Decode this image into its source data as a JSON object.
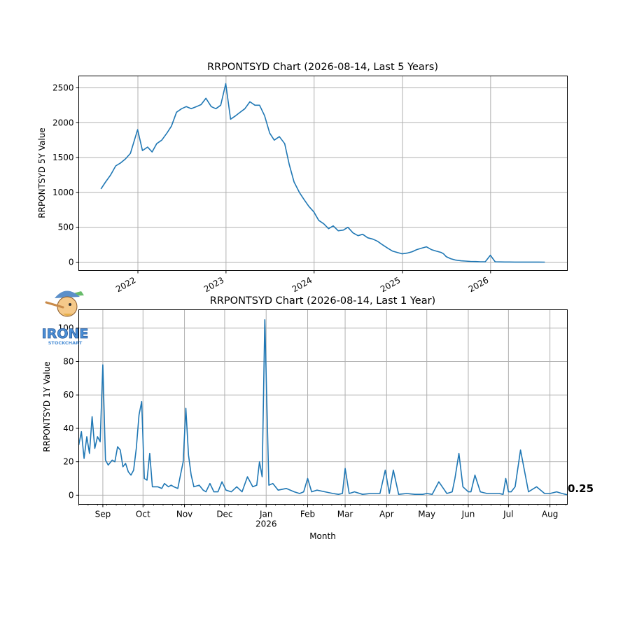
{
  "chart_data": [
    {
      "type": "line",
      "title": "RRPONTSYD Chart (2026-08-14, Last 5 Years)",
      "xlabel": "",
      "ylabel": "RRPONTSYD 5Y Value",
      "ylim": [
        -120,
        2670
      ],
      "xlim": [
        "2021-05-01",
        "2026-11-15"
      ],
      "yticks": [
        0,
        500,
        1000,
        1500,
        2000,
        2500
      ],
      "xticks": [
        {
          "label": "2022",
          "date": "2022-01-01"
        },
        {
          "label": "2023",
          "date": "2023-01-01"
        },
        {
          "label": "2024",
          "date": "2024-01-01"
        },
        {
          "label": "2025",
          "date": "2025-01-01"
        },
        {
          "label": "2026",
          "date": "2026-01-01"
        }
      ],
      "grid": true,
      "series": [
        {
          "color": "#1f77b4",
          "x": [
            "2021-08-01",
            "2021-08-20",
            "2021-09-10",
            "2021-10-01",
            "2021-10-20",
            "2021-11-10",
            "2021-12-01",
            "2021-12-31",
            "2022-01-20",
            "2022-02-10",
            "2022-03-01",
            "2022-03-20",
            "2022-04-10",
            "2022-05-01",
            "2022-05-20",
            "2022-06-10",
            "2022-07-01",
            "2022-07-20",
            "2022-08-10",
            "2022-09-01",
            "2022-09-20",
            "2022-10-10",
            "2022-11-01",
            "2022-11-20",
            "2022-12-10",
            "2022-12-31",
            "2023-01-20",
            "2023-02-10",
            "2023-03-01",
            "2023-03-20",
            "2023-04-10",
            "2023-05-01",
            "2023-05-20",
            "2023-06-10",
            "2023-07-01",
            "2023-07-20",
            "2023-08-10",
            "2023-09-01",
            "2023-09-20",
            "2023-10-10",
            "2023-11-01",
            "2023-11-20",
            "2023-12-10",
            "2023-12-31",
            "2024-01-20",
            "2024-02-10",
            "2024-03-01",
            "2024-03-20",
            "2024-04-10",
            "2024-05-01",
            "2024-05-20",
            "2024-06-10",
            "2024-07-01",
            "2024-07-20",
            "2024-08-10",
            "2024-09-01",
            "2024-09-20",
            "2024-10-10",
            "2024-11-01",
            "2024-11-20",
            "2024-12-10",
            "2024-12-31",
            "2025-01-20",
            "2025-02-10",
            "2025-03-01",
            "2025-03-20",
            "2025-04-10",
            "2025-05-01",
            "2025-05-20",
            "2025-06-10",
            "2025-06-20",
            "2025-07-01",
            "2025-07-20",
            "2025-08-10",
            "2025-09-01",
            "2025-09-20",
            "2025-10-10",
            "2025-11-01",
            "2025-11-20",
            "2025-12-10",
            "2025-12-31",
            "2026-01-20",
            "2026-02-10",
            "2026-03-01",
            "2026-03-20",
            "2026-04-10",
            "2026-05-01",
            "2026-05-20",
            "2026-06-10",
            "2026-07-01",
            "2026-07-20",
            "2026-08-14"
          ],
          "values": [
            1050,
            1150,
            1250,
            1380,
            1420,
            1480,
            1560,
            1900,
            1600,
            1650,
            1580,
            1700,
            1750,
            1850,
            1950,
            2150,
            2200,
            2230,
            2200,
            2230,
            2260,
            2350,
            2230,
            2200,
            2250,
            2560,
            2050,
            2100,
            2150,
            2200,
            2300,
            2250,
            2250,
            2100,
            1850,
            1750,
            1800,
            1700,
            1400,
            1150,
            1000,
            900,
            800,
            720,
            600,
            550,
            480,
            520,
            450,
            460,
            500,
            420,
            380,
            400,
            350,
            330,
            300,
            250,
            200,
            160,
            140,
            120,
            130,
            150,
            180,
            200,
            220,
            180,
            160,
            140,
            120,
            80,
            50,
            30,
            20,
            15,
            10,
            8,
            5,
            5,
            100,
            5,
            3,
            2,
            2,
            1,
            1,
            1,
            1,
            1,
            1,
            0.25
          ]
        }
      ]
    },
    {
      "type": "line",
      "title": "RRPONTSYD Chart (2026-08-14, Last 1 Year)",
      "xlabel": "Month",
      "ylabel": "RRPONTSYD 1Y Value",
      "ylim": [
        -5.5,
        111
      ],
      "xlim": [
        "2025-08-14",
        "2026-08-14"
      ],
      "yticks": [
        0,
        20,
        40,
        60,
        80,
        100
      ],
      "xticks": [
        {
          "label": "Sep",
          "date": "2025-09-01"
        },
        {
          "label": "Oct",
          "date": "2025-10-01"
        },
        {
          "label": "Nov",
          "date": "2025-11-01"
        },
        {
          "label": "Dec",
          "date": "2025-12-01"
        },
        {
          "label": "Jan",
          "date": "2026-01-01",
          "sublabel": "2026"
        },
        {
          "label": "Feb",
          "date": "2026-02-01"
        },
        {
          "label": "Mar",
          "date": "2026-03-01"
        },
        {
          "label": "Apr",
          "date": "2026-04-01"
        },
        {
          "label": "May",
          "date": "2026-05-01"
        },
        {
          "label": "Jun",
          "date": "2026-06-01"
        },
        {
          "label": "Jul",
          "date": "2026-07-01"
        },
        {
          "label": "Aug",
          "date": "2026-08-01"
        }
      ],
      "grid": true,
      "last_value_label": "0.25",
      "series": [
        {
          "color": "#1f77b4",
          "x": [
            "2025-08-14",
            "2025-08-16",
            "2025-08-18",
            "2025-08-20",
            "2025-08-22",
            "2025-08-24",
            "2025-08-26",
            "2025-08-28",
            "2025-08-30",
            "2025-09-01",
            "2025-09-03",
            "2025-09-05",
            "2025-09-08",
            "2025-09-10",
            "2025-09-12",
            "2025-09-14",
            "2025-09-16",
            "2025-09-18",
            "2025-09-20",
            "2025-09-22",
            "2025-09-24",
            "2025-09-26",
            "2025-09-28",
            "2025-09-30",
            "2025-10-02",
            "2025-10-04",
            "2025-10-06",
            "2025-10-08",
            "2025-10-12",
            "2025-10-15",
            "2025-10-17",
            "2025-10-20",
            "2025-10-22",
            "2025-10-24",
            "2025-10-27",
            "2025-10-29",
            "2025-10-31",
            "2025-11-02",
            "2025-11-04",
            "2025-11-06",
            "2025-11-08",
            "2025-11-12",
            "2025-11-15",
            "2025-11-17",
            "2025-11-20",
            "2025-11-23",
            "2025-11-26",
            "2025-11-29",
            "2025-12-02",
            "2025-12-06",
            "2025-12-10",
            "2025-12-14",
            "2025-12-18",
            "2025-12-22",
            "2025-12-25",
            "2025-12-27",
            "2025-12-29",
            "2025-12-31",
            "2026-01-03",
            "2026-01-06",
            "2026-01-10",
            "2026-01-16",
            "2026-01-22",
            "2026-01-26",
            "2026-01-29",
            "2026-02-01",
            "2026-02-04",
            "2026-02-08",
            "2026-02-14",
            "2026-02-20",
            "2026-02-24",
            "2026-02-27",
            "2026-03-01",
            "2026-03-04",
            "2026-03-08",
            "2026-03-14",
            "2026-03-20",
            "2026-03-24",
            "2026-03-27",
            "2026-03-31",
            "2026-04-03",
            "2026-04-06",
            "2026-04-10",
            "2026-04-16",
            "2026-04-22",
            "2026-04-28",
            "2026-05-01",
            "2026-05-05",
            "2026-05-10",
            "2026-05-16",
            "2026-05-20",
            "2026-05-22",
            "2026-05-25",
            "2026-05-28",
            "2026-06-01",
            "2026-06-03",
            "2026-06-06",
            "2026-06-10",
            "2026-06-15",
            "2026-06-20",
            "2026-06-24",
            "2026-06-27",
            "2026-06-29",
            "2026-07-01",
            "2026-07-03",
            "2026-07-06",
            "2026-07-10",
            "2026-07-16",
            "2026-07-22",
            "2026-07-28",
            "2026-08-01",
            "2026-08-06",
            "2026-08-10",
            "2026-08-14"
          ],
          "values": [
            30,
            38,
            22,
            35,
            25,
            47,
            28,
            35,
            32,
            78,
            21,
            18,
            21,
            20,
            29,
            27,
            17,
            19,
            14,
            12,
            15,
            28,
            48,
            56,
            10,
            9,
            25,
            5,
            5,
            4,
            7,
            5,
            6,
            5,
            4,
            12,
            20,
            52,
            24,
            12,
            5,
            6,
            3,
            2,
            7,
            2,
            2,
            8,
            3,
            2,
            5,
            2,
            11,
            5,
            6,
            20,
            11,
            105,
            6,
            7,
            3,
            4,
            2,
            1,
            2,
            10,
            2,
            3,
            2,
            1,
            0.5,
            1,
            16,
            1,
            2,
            0.5,
            1,
            1,
            1,
            15,
            1,
            15,
            0.5,
            1,
            0.5,
            0.5,
            1,
            0.5,
            8,
            1,
            2,
            10,
            25,
            5,
            2,
            2,
            12,
            2,
            1,
            1,
            1,
            0.5,
            10,
            2,
            2,
            5,
            27,
            2,
            5,
            1,
            1,
            2,
            1,
            0.25
          ]
        }
      ]
    }
  ],
  "logo": {
    "text": "IRONE",
    "subtext": "STOCKCHART",
    "icon": "pinocchio-mascot-logo"
  }
}
